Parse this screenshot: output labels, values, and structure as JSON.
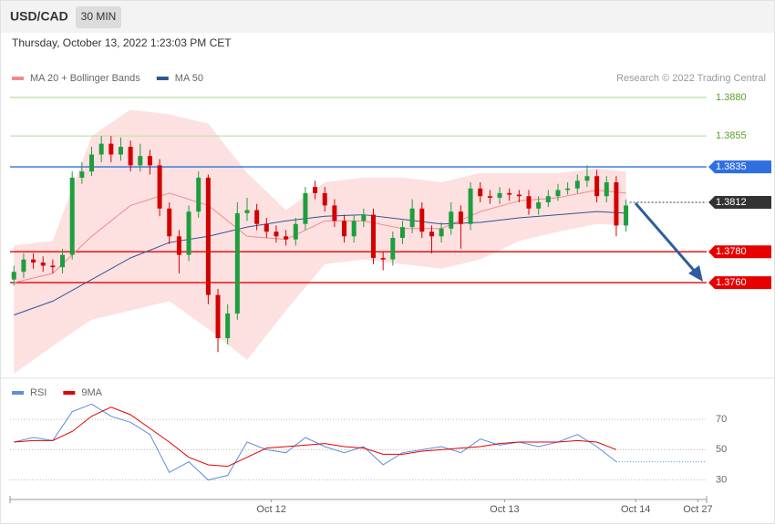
{
  "header": {
    "symbol": "USD/CAD",
    "interval": "30 MIN",
    "timestamp": "Thursday, October 13, 2022 1:23:03 PM CET"
  },
  "chart_data": [
    {
      "type": "candlestick",
      "credit": "Research © 2022 Trading Central",
      "up_color": "#1e9e3e",
      "down_color": "#d40000",
      "open": [
        1.3762,
        1.3767,
        1.3775,
        1.3773,
        1.3771,
        1.377,
        1.3778,
        1.3828,
        1.3832,
        1.3843,
        1.385,
        1.3843,
        1.3848,
        1.3836,
        1.3842,
        1.3836,
        1.3808,
        1.379,
        1.3778,
        1.3806,
        1.3828,
        1.3752,
        1.3724,
        1.374,
        1.3805,
        1.3807,
        1.3798,
        1.3793,
        1.379,
        1.3788,
        1.3798,
        1.3822,
        1.3818,
        1.381,
        1.38,
        1.379,
        1.38,
        1.3804,
        1.3776,
        1.3775,
        1.3789,
        1.3796,
        1.3808,
        1.3793,
        1.379,
        1.3795,
        1.3806,
        1.3798,
        1.3821,
        1.3816,
        1.3815,
        1.3818,
        1.3817,
        1.3816,
        1.3808,
        1.3812,
        1.3816,
        1.382,
        1.3821,
        1.3826,
        1.3829,
        1.3816,
        1.3825,
        1.3797
      ],
      "high": [
        1.3771,
        1.3779,
        1.3779,
        1.3777,
        1.3775,
        1.3782,
        1.3832,
        1.3838,
        1.3848,
        1.3855,
        1.3855,
        1.3854,
        1.3852,
        1.385,
        1.3846,
        1.384,
        1.3812,
        1.3794,
        1.381,
        1.3832,
        1.383,
        1.3756,
        1.3746,
        1.3812,
        1.3815,
        1.3811,
        1.3802,
        1.3797,
        1.3794,
        1.3802,
        1.3822,
        1.3826,
        1.3822,
        1.3814,
        1.3804,
        1.3804,
        1.3808,
        1.3808,
        1.378,
        1.3793,
        1.38,
        1.3814,
        1.3812,
        1.3797,
        1.3799,
        1.3812,
        1.381,
        1.3825,
        1.3825,
        1.382,
        1.3822,
        1.3821,
        1.382,
        1.382,
        1.3816,
        1.382,
        1.3824,
        1.3825,
        1.383,
        1.3836,
        1.3833,
        1.3829,
        1.3829,
        1.3814
      ],
      "low": [
        1.3758,
        1.3763,
        1.3769,
        1.3767,
        1.3766,
        1.3766,
        1.3775,
        1.3824,
        1.3829,
        1.3838,
        1.3838,
        1.3839,
        1.3832,
        1.3832,
        1.383,
        1.3803,
        1.3785,
        1.3766,
        1.3774,
        1.3802,
        1.3746,
        1.3715,
        1.372,
        1.3736,
        1.38,
        1.3794,
        1.3789,
        1.3786,
        1.3784,
        1.3784,
        1.3794,
        1.3814,
        1.3806,
        1.3796,
        1.3786,
        1.3786,
        1.3796,
        1.3772,
        1.3768,
        1.3771,
        1.3785,
        1.3792,
        1.3789,
        1.3779,
        1.3786,
        1.3791,
        1.3782,
        1.3794,
        1.3812,
        1.3811,
        1.3811,
        1.3813,
        1.3812,
        1.3804,
        1.3804,
        1.3809,
        1.3813,
        1.3817,
        1.3818,
        1.3822,
        1.3812,
        1.3812,
        1.379,
        1.3793
      ],
      "close": [
        1.3767,
        1.3775,
        1.3773,
        1.3771,
        1.377,
        1.3778,
        1.3828,
        1.3832,
        1.3843,
        1.385,
        1.3843,
        1.3848,
        1.3836,
        1.3842,
        1.3836,
        1.3808,
        1.379,
        1.3778,
        1.3806,
        1.3828,
        1.3752,
        1.3724,
        1.374,
        1.3805,
        1.3807,
        1.3798,
        1.3793,
        1.379,
        1.3788,
        1.3798,
        1.3818,
        1.3818,
        1.381,
        1.38,
        1.379,
        1.38,
        1.3804,
        1.3776,
        1.3775,
        1.3789,
        1.3796,
        1.3808,
        1.3793,
        1.379,
        1.3795,
        1.3806,
        1.3798,
        1.3821,
        1.3816,
        1.3815,
        1.3818,
        1.3817,
        1.3816,
        1.3808,
        1.3812,
        1.3816,
        1.382,
        1.3821,
        1.3826,
        1.3829,
        1.3816,
        1.3825,
        1.3797,
        1.381
      ],
      "overlays": [
        {
          "name": "MA 20 + Bollinger Bands",
          "color": "#f08a8a",
          "band_color": "#fde0e0",
          "x": [
            0,
            4,
            8,
            12,
            16,
            20,
            24,
            28,
            32,
            36,
            40,
            44,
            48,
            52,
            56,
            60,
            63
          ],
          "values": [
            1.376,
            1.3766,
            1.379,
            1.381,
            1.3818,
            1.381,
            1.379,
            1.3788,
            1.38,
            1.38,
            1.3795,
            1.3795,
            1.3806,
            1.3813,
            1.3815,
            1.382,
            1.3818
          ],
          "upper": [
            1.3784,
            1.3787,
            1.3855,
            1.3872,
            1.3869,
            1.3863,
            1.3831,
            1.3807,
            1.3825,
            1.3828,
            1.3828,
            1.3825,
            1.3831,
            1.3831,
            1.3831,
            1.3834,
            1.3832
          ],
          "lower": [
            1.3701,
            1.3719,
            1.3736,
            1.3742,
            1.3748,
            1.373,
            1.371,
            1.3742,
            1.3772,
            1.3775,
            1.3772,
            1.3769,
            1.3775,
            1.3787,
            1.3793,
            1.3798,
            1.3797
          ]
        },
        {
          "name": "MA 50",
          "color": "#2f5597",
          "x": [
            0,
            4,
            8,
            12,
            16,
            20,
            24,
            28,
            32,
            36,
            40,
            44,
            48,
            52,
            56,
            60,
            63
          ],
          "values": [
            1.3739,
            1.3748,
            1.3762,
            1.3776,
            1.3786,
            1.379,
            1.3796,
            1.38,
            1.3803,
            1.3804,
            1.3801,
            1.3798,
            1.3799,
            1.3802,
            1.3804,
            1.3806,
            1.3805
          ]
        }
      ],
      "levels": [
        {
          "value": 1.388,
          "label": "1.3880",
          "color": "#b9dca0",
          "label_color": "#5aa02c",
          "box": false,
          "style": "solid"
        },
        {
          "value": 1.3855,
          "label": "1.3855",
          "color": "#c9e3b3",
          "label_color": "#5aa02c",
          "box": false,
          "style": "solid"
        },
        {
          "value": 1.3835,
          "label": "1.3835",
          "color": "#2f6fe0",
          "label_color": "#ffffff",
          "box": true,
          "style": "solid"
        },
        {
          "value": 1.3812,
          "label": "1.3812",
          "color": "#333333",
          "label_color": "#ffffff",
          "box": true,
          "style": "dotted"
        },
        {
          "value": 1.378,
          "label": "1.3780",
          "color": "#e60000",
          "label_color": "#ffffff",
          "box": true,
          "style": "solid"
        },
        {
          "value": 1.376,
          "label": "1.3760",
          "color": "#e60000",
          "label_color": "#ffffff",
          "box": true,
          "style": "solid"
        }
      ],
      "xlim": [
        -0.4,
        71.3
      ],
      "ylim": [
        1.3701,
        1.3887
      ]
    },
    {
      "type": "line",
      "series": [
        {
          "name": "RSI",
          "color": "#5b8de0",
          "x": [
            0,
            2,
            4,
            6,
            8,
            10,
            12,
            14,
            16,
            18,
            20,
            22,
            24,
            26,
            28,
            30,
            32,
            34,
            36,
            38,
            40,
            42,
            44,
            46,
            48,
            50,
            52,
            54,
            56,
            58,
            60,
            62
          ],
          "values": [
            55,
            58,
            56,
            75,
            80,
            72,
            68,
            60,
            35,
            42,
            30,
            33,
            55,
            50,
            48,
            58,
            52,
            48,
            52,
            40,
            48,
            50,
            52,
            48,
            57,
            53,
            55,
            52,
            55,
            60,
            52,
            42
          ]
        },
        {
          "name": "9MA",
          "color": "#e60000",
          "x": [
            0,
            2,
            4,
            6,
            8,
            10,
            12,
            14,
            16,
            18,
            20,
            22,
            24,
            26,
            28,
            30,
            32,
            34,
            36,
            38,
            40,
            42,
            44,
            46,
            48,
            50,
            52,
            54,
            56,
            58,
            60,
            62
          ],
          "values": [
            55,
            56,
            56,
            62,
            72,
            78,
            73,
            64,
            55,
            45,
            40,
            39,
            45,
            51,
            52,
            53,
            54,
            52,
            51,
            47,
            47,
            49,
            50,
            51,
            52,
            54,
            55,
            55,
            55,
            56,
            55,
            50
          ]
        }
      ],
      "ylim": [
        22,
        79
      ],
      "yticks": [
        30,
        50,
        70
      ],
      "grid": true,
      "xlim": [
        -0.4,
        71.3
      ],
      "xticks": [
        {
          "value": 26.5,
          "label": "Oct 12"
        },
        {
          "value": 50.5,
          "label": "Oct 13"
        },
        {
          "value": 64,
          "label": "Oct 14"
        },
        {
          "value": 70.4,
          "label": "Oct 27"
        }
      ]
    }
  ]
}
